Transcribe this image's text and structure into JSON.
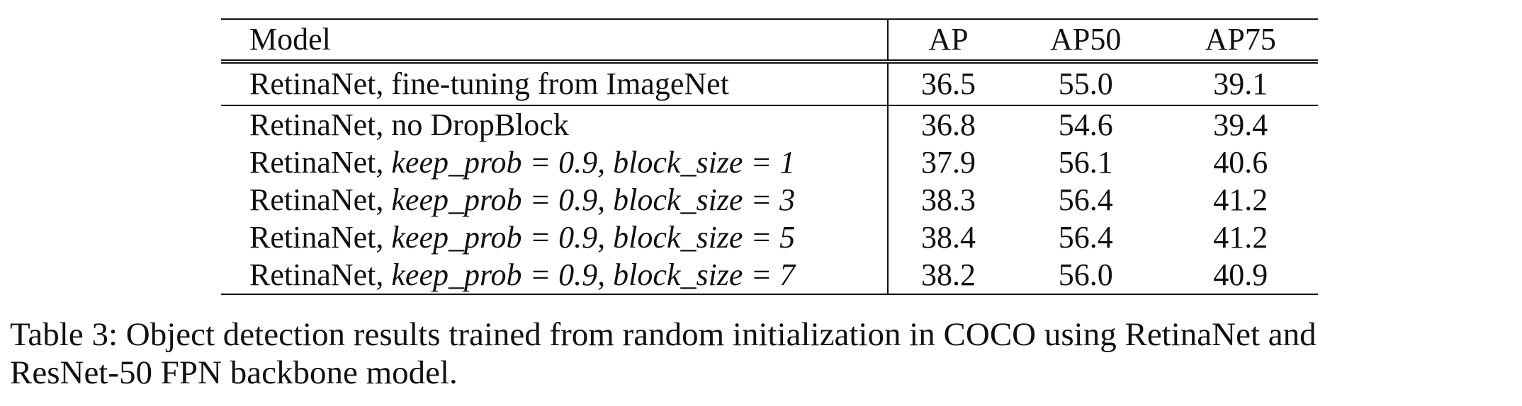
{
  "table": {
    "columns": [
      "Model",
      "AP",
      "AP50",
      "AP75"
    ],
    "rows": [
      {
        "prefix": "RetinaNet, fine-tuning from ImageNet",
        "param": "",
        "ap": "36.5",
        "ap50": "55.0",
        "ap75": "39.1"
      },
      {
        "prefix": "RetinaNet, no DropBlock",
        "param": "",
        "ap": "36.8",
        "ap50": "54.6",
        "ap75": "39.4"
      },
      {
        "prefix": "RetinaNet, ",
        "param": "keep_prob = 0.9, block_size = 1",
        "ap": "37.9",
        "ap50": "56.1",
        "ap75": "40.6"
      },
      {
        "prefix": "RetinaNet, ",
        "param": "keep_prob = 0.9, block_size = 3",
        "ap": "38.3",
        "ap50": "56.4",
        "ap75": "41.2"
      },
      {
        "prefix": "RetinaNet, ",
        "param": "keep_prob = 0.9, block_size = 5",
        "ap": "38.4",
        "ap50": "56.4",
        "ap75": "41.2"
      },
      {
        "prefix": "RetinaNet, ",
        "param": "keep_prob = 0.9, block_size = 7",
        "ap": "38.2",
        "ap50": "56.0",
        "ap75": "40.9"
      }
    ]
  },
  "caption": {
    "line1": "Table 3: Object detection results trained from random initialization in COCO using RetinaNet and",
    "line2": "ResNet-50 FPN backbone model."
  }
}
